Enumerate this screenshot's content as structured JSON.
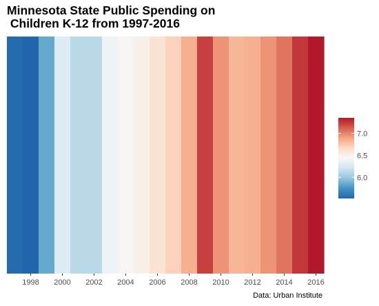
{
  "chart_data": {
    "type": "heatmap",
    "title": "Minnesota State Public Spending on\n Children K-12 from 1997-2016",
    "caption": "Data: Urban Institute",
    "x": [
      1997,
      1998,
      1999,
      2000,
      2001,
      2002,
      2003,
      2004,
      2005,
      2006,
      2007,
      2008,
      2009,
      2010,
      2011,
      2012,
      2013,
      2014,
      2015,
      2016
    ],
    "values": [
      5.55,
      5.52,
      5.85,
      6.28,
      6.12,
      6.12,
      6.38,
      6.45,
      6.5,
      6.6,
      6.7,
      6.85,
      7.22,
      6.95,
      6.82,
      6.85,
      6.95,
      7.05,
      7.25,
      7.35
    ],
    "x_ticks": [
      "1998",
      "2000",
      "2002",
      "2004",
      "2006",
      "2008",
      "2010",
      "2012",
      "2014",
      "2016"
    ],
    "xlabel": "",
    "ylabel": "",
    "color_scale": {
      "palette": "RdBu reversed",
      "colors_low_to_high": [
        "#2166ac",
        "#4393c3",
        "#92c5de",
        "#d1e5f0",
        "#f7f7f7",
        "#fddbc7",
        "#f4a582",
        "#d6604d",
        "#b2182b"
      ],
      "range": [
        5.52,
        7.35
      ]
    },
    "legend": {
      "position": "right",
      "ticks": [
        "6.0",
        "6.5",
        "7.0"
      ],
      "tick_values": [
        6.0,
        6.5,
        7.0
      ]
    },
    "grid": false
  }
}
